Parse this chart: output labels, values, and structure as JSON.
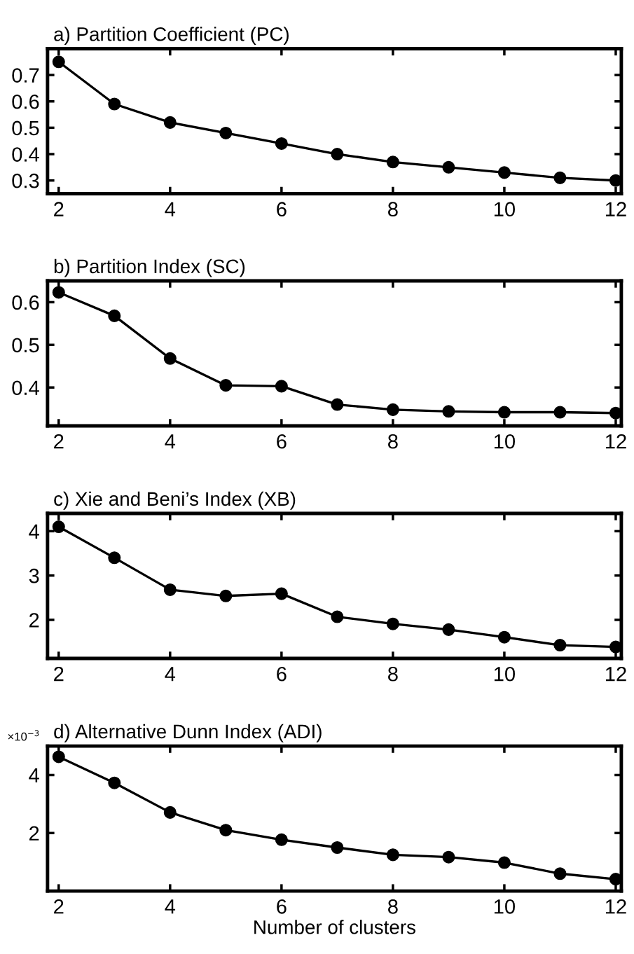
{
  "chart_data": [
    {
      "type": "line",
      "title": "a) Partition Coefficient (PC)",
      "x": [
        2,
        3,
        4,
        5,
        6,
        7,
        8,
        9,
        10,
        11,
        12
      ],
      "values": [
        0.75,
        0.59,
        0.52,
        0.48,
        0.44,
        0.4,
        0.37,
        0.35,
        0.33,
        0.31,
        0.3
      ],
      "color": "#000000",
      "xlim": [
        1.8,
        12.1
      ],
      "xticks": [
        2,
        4,
        6,
        8,
        10,
        12
      ],
      "ylim": [
        0.25,
        0.8
      ],
      "yticks": [
        0.3,
        0.4,
        0.5,
        0.6,
        0.7
      ],
      "grid": false,
      "legend": false,
      "marker": "circle",
      "line_style": "solid"
    },
    {
      "type": "line",
      "title": "b) Partition Index (SC)",
      "x": [
        2,
        3,
        4,
        5,
        6,
        7,
        8,
        9,
        10,
        11,
        12
      ],
      "values": [
        0.623,
        0.568,
        0.468,
        0.405,
        0.403,
        0.36,
        0.348,
        0.344,
        0.342,
        0.342,
        0.34
      ],
      "color": "#000000",
      "xlim": [
        1.8,
        12.1
      ],
      "xticks": [
        2,
        4,
        6,
        8,
        10,
        12
      ],
      "ylim": [
        0.31,
        0.65
      ],
      "yticks": [
        0.4,
        0.5,
        0.6
      ],
      "grid": false,
      "legend": false,
      "marker": "circle",
      "line_style": "solid"
    },
    {
      "type": "line",
      "title": "c) Xie and Beni’s Index (XB)",
      "x": [
        2,
        3,
        4,
        5,
        6,
        7,
        8,
        9,
        10,
        11,
        12
      ],
      "values": [
        4.1,
        3.4,
        2.68,
        2.54,
        2.59,
        2.07,
        1.91,
        1.78,
        1.61,
        1.43,
        1.39
      ],
      "color": "#000000",
      "xlim": [
        1.8,
        12.1
      ],
      "xticks": [
        2,
        4,
        6,
        8,
        10,
        12
      ],
      "ylim": [
        1.13,
        4.4
      ],
      "yticks": [
        2,
        3,
        4
      ],
      "grid": false,
      "legend": false,
      "marker": "circle",
      "line_style": "solid"
    },
    {
      "type": "line",
      "title": "d) Alternative Dunn Index (ADI)",
      "xlabel": "Number of clusters",
      "annotations": [
        "×10$^{−3}$"
      ],
      "x": [
        2,
        3,
        4,
        5,
        6,
        7,
        8,
        9,
        10,
        11,
        12
      ],
      "values": [
        4.63,
        3.73,
        2.71,
        2.1,
        1.77,
        1.5,
        1.25,
        1.17,
        0.98,
        0.6,
        0.41
      ],
      "color": "#000000",
      "xlim": [
        1.8,
        12.1
      ],
      "xticks": [
        2,
        4,
        6,
        8,
        10,
        12
      ],
      "ylim": [
        0,
        5
      ],
      "yticks": [
        2,
        4
      ],
      "grid": false,
      "legend": false,
      "marker": "circle",
      "line_style": "solid"
    }
  ]
}
